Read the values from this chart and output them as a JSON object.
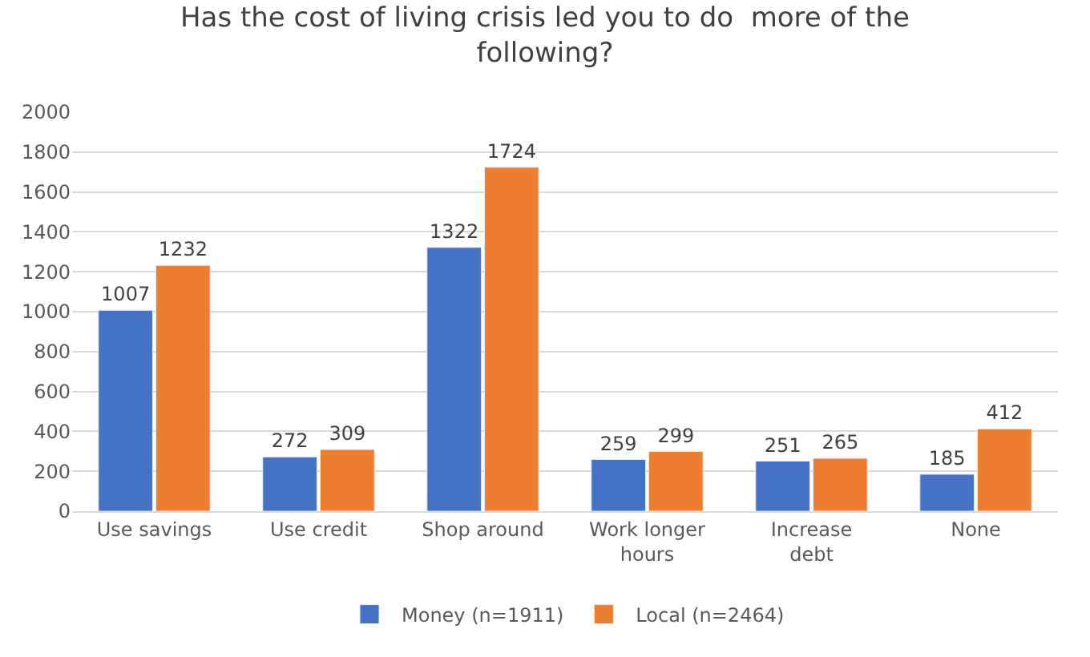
{
  "chart_data": {
    "type": "bar",
    "title": "Has the cost of living crisis led you to do  more of the following?",
    "categories": [
      "Use savings",
      "Use credit",
      "Shop around",
      "Work longer hours",
      "Increase debt",
      "None"
    ],
    "series": [
      {
        "name": "Money (n=1911)",
        "color": "#4472c4",
        "values": [
          1007,
          272,
          1322,
          259,
          251,
          185
        ]
      },
      {
        "name": "Local (n=2464)",
        "color": "#ed7d31",
        "values": [
          1232,
          309,
          1724,
          299,
          265,
          412
        ]
      }
    ],
    "ylim": [
      0,
      2000
    ],
    "yticks": [
      0,
      200,
      400,
      600,
      800,
      1000,
      1200,
      1400,
      1600,
      1800,
      2000
    ],
    "grid": "y",
    "legend": "bottom",
    "data_labels": true
  }
}
